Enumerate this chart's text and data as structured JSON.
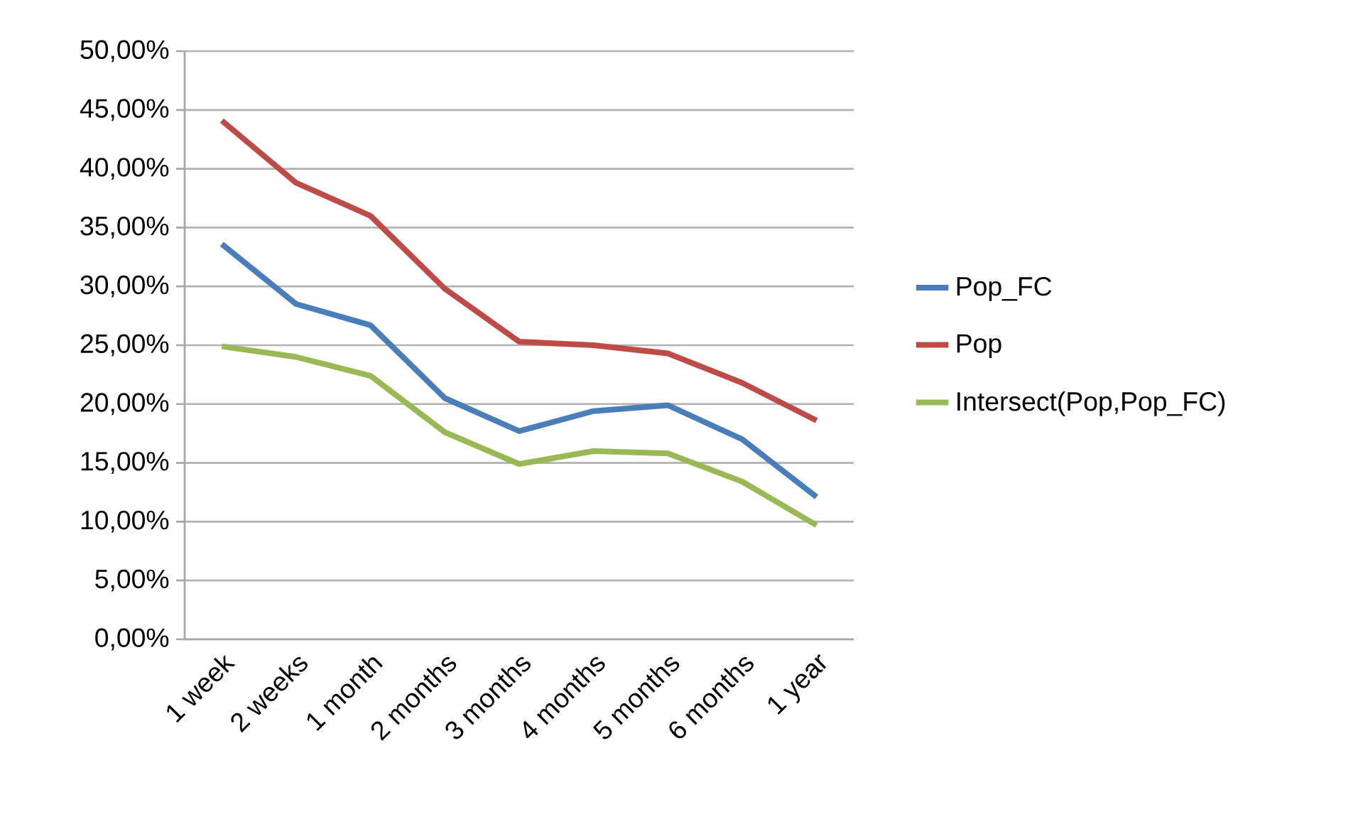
{
  "chart_data": {
    "type": "line",
    "categories": [
      "1 week",
      "2 weeks",
      "1 month",
      "2 months",
      "3 months",
      "4 months",
      "5 months",
      "6 months",
      "1 year"
    ],
    "series": [
      {
        "name": "Pop_FC",
        "color": "#4a7ebb",
        "values": [
          33.6,
          28.5,
          26.7,
          20.5,
          17.7,
          19.4,
          19.9,
          17.0,
          12.1
        ]
      },
      {
        "name": "Pop",
        "color": "#be4b48",
        "values": [
          44.1,
          38.8,
          36.0,
          29.8,
          25.3,
          25.0,
          24.3,
          21.8,
          18.6
        ]
      },
      {
        "name": "Intersect(Pop,Pop_FC)",
        "color": "#98b954",
        "values": [
          24.9,
          24.0,
          22.4,
          17.6,
          14.9,
          16.0,
          15.8,
          13.4,
          9.7
        ]
      }
    ],
    "ylim": [
      0,
      50
    ],
    "yticks": [
      {
        "value": 0,
        "label": "0,00%"
      },
      {
        "value": 5,
        "label": "5,00%"
      },
      {
        "value": 10,
        "label": "10,00%"
      },
      {
        "value": 15,
        "label": "15,00%"
      },
      {
        "value": 20,
        "label": "20,00%"
      },
      {
        "value": 25,
        "label": "25,00%"
      },
      {
        "value": 30,
        "label": "30,00%"
      },
      {
        "value": 35,
        "label": "35,00%"
      },
      {
        "value": 40,
        "label": "40,00%"
      },
      {
        "value": 45,
        "label": "45,00%"
      },
      {
        "value": 50,
        "label": "50,00%"
      }
    ],
    "grid": "y",
    "legend": "right",
    "marker": "none",
    "line_style": "solid"
  }
}
